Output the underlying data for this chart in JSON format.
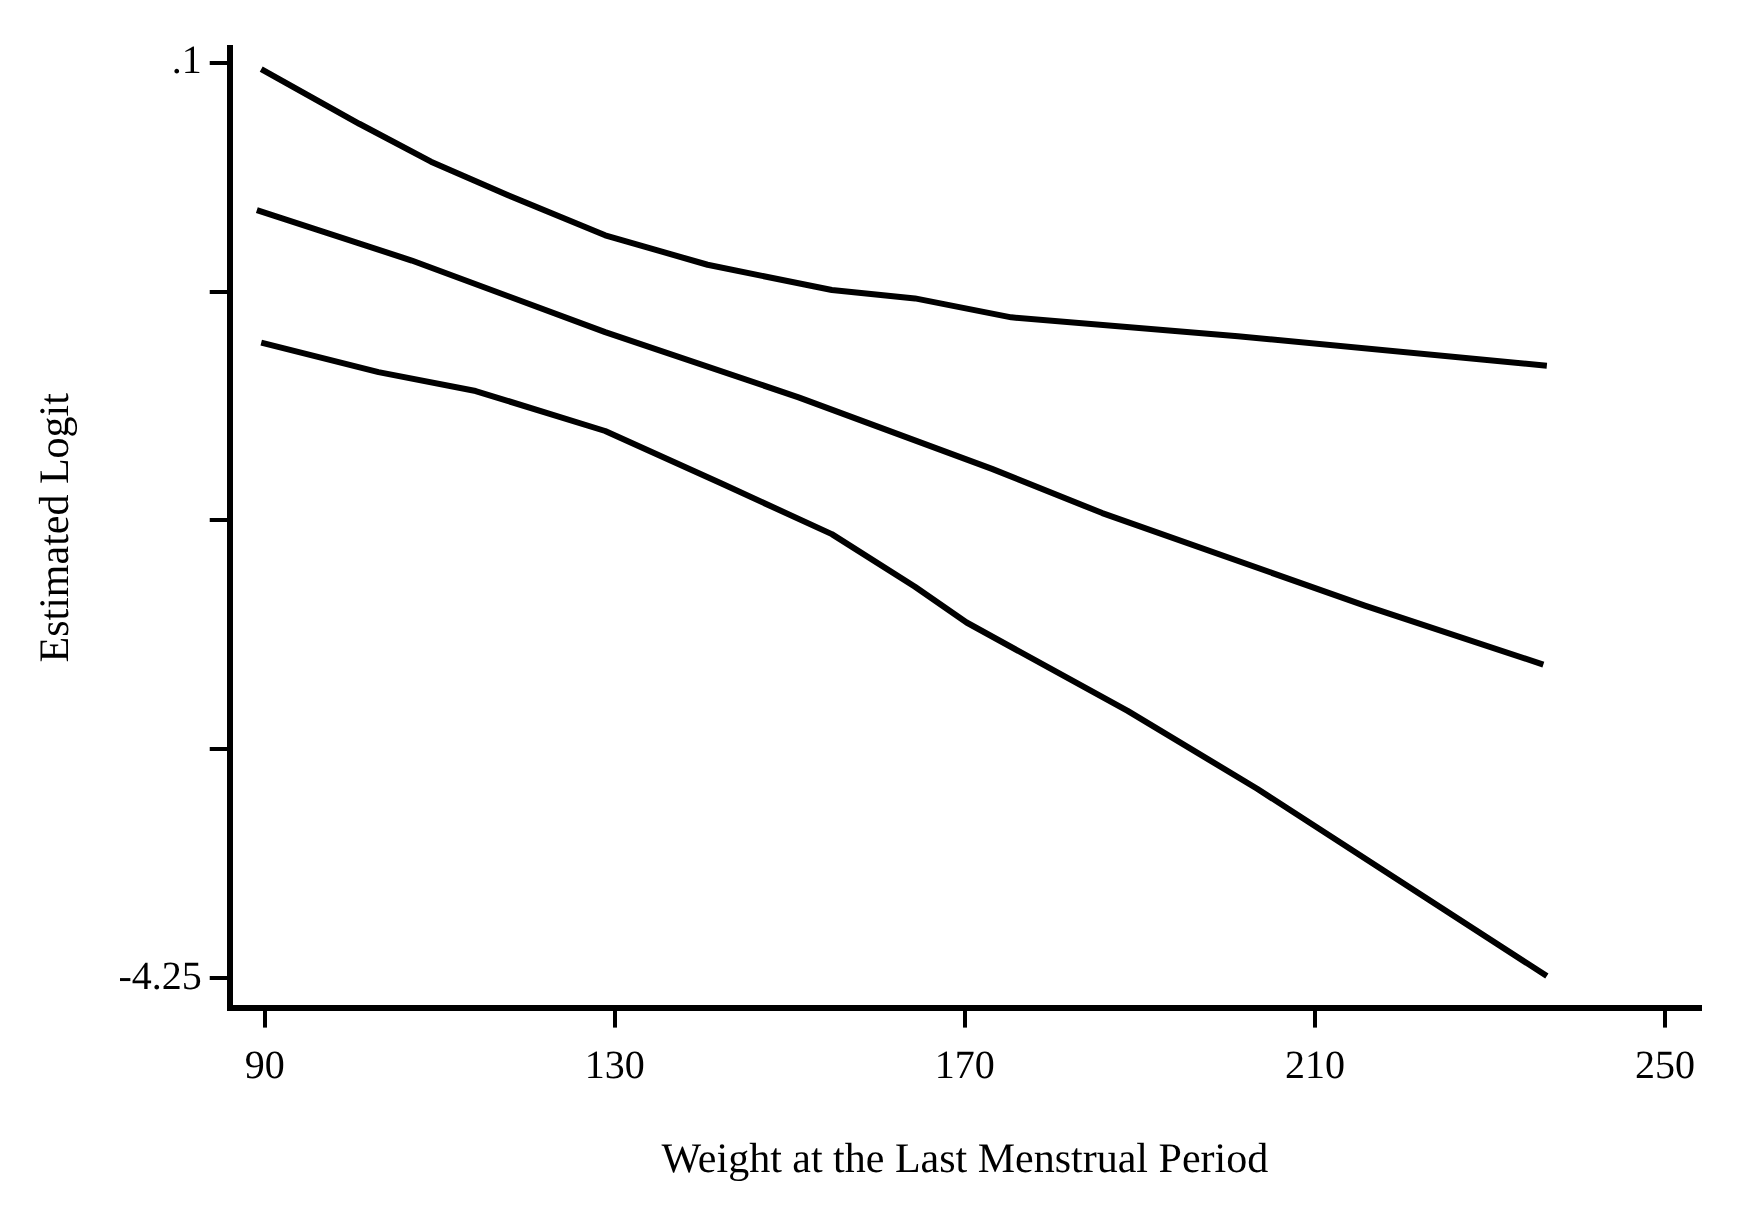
{
  "chart_data": {
    "type": "line",
    "xlabel": "Weight at the Last Menstrual Period",
    "ylabel": "Estimated Logit",
    "xlim": [
      86,
      254
    ],
    "xticks": [
      90,
      130,
      170,
      210,
      250
    ],
    "ylim": [
      -4.39,
      0.17
    ],
    "yticks": [
      {
        "value": 0.1,
        "label": ".1"
      },
      {
        "value": -0.9875,
        "label": null
      },
      {
        "value": -2.075,
        "label": null
      },
      {
        "value": -3.1625,
        "label": null
      },
      {
        "value": -4.25,
        "label": "-4.25"
      }
    ],
    "grid": false,
    "legend": false,
    "marker": "none",
    "line_style": "solid",
    "series": [
      {
        "color": "#000000",
        "x": [
          89.6,
          100.8,
          109,
          117.8,
          128.9,
          140.6,
          154.8,
          164.3,
          175.3,
          201.2,
          236.5
        ],
        "values": [
          0.07,
          -0.19,
          -0.37,
          -0.53,
          -0.72,
          -0.86,
          -0.98,
          -1.02,
          -1.11,
          -1.2,
          -1.34
        ]
      },
      {
        "color": "#000000",
        "x": [
          89.1,
          106.8,
          128.9,
          151,
          173.1,
          185.7,
          215.7,
          236.1
        ],
        "values": [
          -0.6,
          -0.84,
          -1.18,
          -1.49,
          -1.83,
          -2.04,
          -2.48,
          -2.76
        ]
      },
      {
        "color": "#000000",
        "x": [
          89.6,
          103,
          114.1,
          128.9,
          142.2,
          154.8,
          164.3,
          170.2,
          188.6,
          203.4,
          236.5
        ],
        "values": [
          -1.23,
          -1.37,
          -1.46,
          -1.65,
          -1.9,
          -2.14,
          -2.39,
          -2.56,
          -2.98,
          -3.35,
          -4.24
        ]
      }
    ]
  }
}
